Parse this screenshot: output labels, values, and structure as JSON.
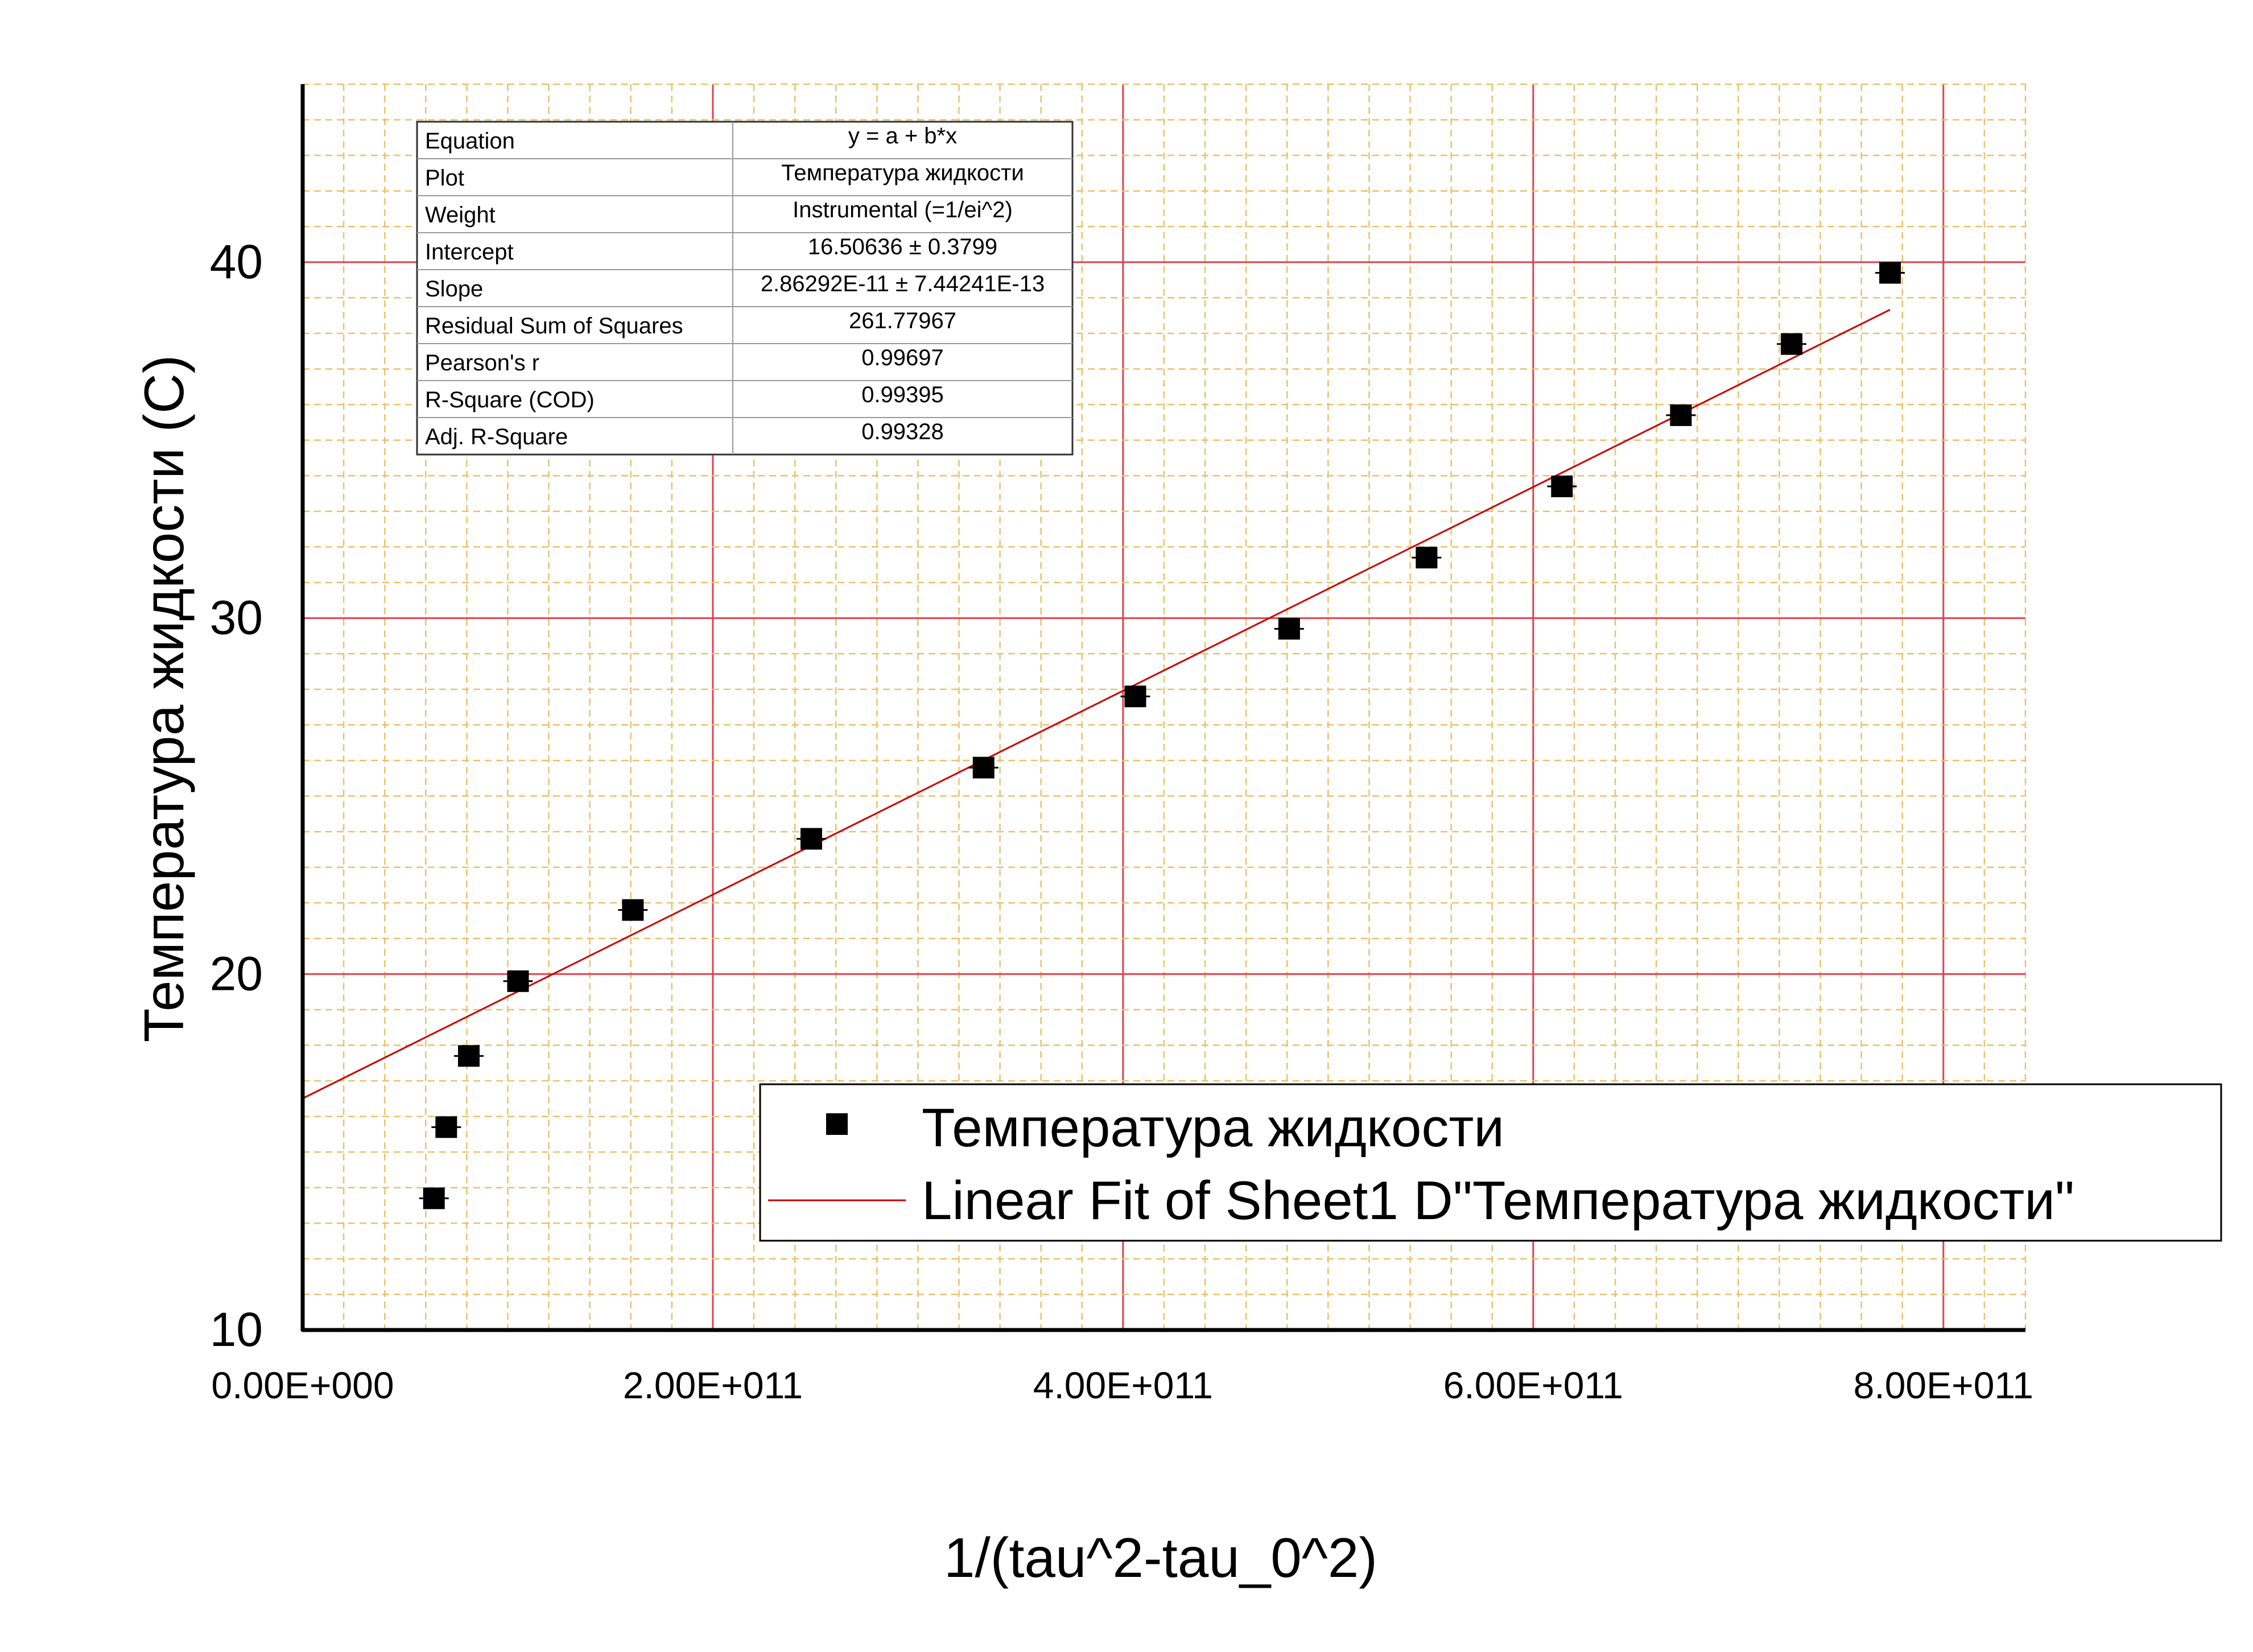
{
  "chart_data": {
    "type": "scatter",
    "xlabel": "1/(tau^2-tau_0^2)",
    "ylabel": "Температура жидкости (C)",
    "xlim": [
      0,
      840000000000.0
    ],
    "ylim": [
      10,
      45
    ],
    "x_ticks": [
      {
        "value": 0,
        "label": "0.00E+000"
      },
      {
        "value": 200000000000.0,
        "label": "2.00E+011"
      },
      {
        "value": 400000000000.0,
        "label": "4.00E+011"
      },
      {
        "value": 600000000000.0,
        "label": "6.00E+011"
      },
      {
        "value": 800000000000.0,
        "label": "8.00E+011"
      }
    ],
    "y_ticks": [
      {
        "value": 10,
        "label": "10"
      },
      {
        "value": 20,
        "label": "20"
      },
      {
        "value": 30,
        "label": "30"
      },
      {
        "value": 40,
        "label": "40"
      }
    ],
    "grid": true,
    "series": [
      {
        "name": "Температура жидкости",
        "marker": "square",
        "color": "#000000",
        "x": [
          64000000000.0,
          70000000000.0,
          81000000000.0,
          105000000000.0,
          161000000000.0,
          248000000000.0,
          332000000000.0,
          406000000000.0,
          481000000000.0,
          548000000000.0,
          614000000000.0,
          672000000000.0,
          726000000000.0,
          774000000000.0
        ],
        "y": [
          13.7,
          15.7,
          17.7,
          19.8,
          21.8,
          23.8,
          25.8,
          27.8,
          29.7,
          31.7,
          33.7,
          35.7,
          37.7,
          39.7
        ]
      },
      {
        "name": "Linear Fit of Sheet1 D\"Температура жидкости\"",
        "type": "line",
        "color": "#cc0000",
        "intercept": 16.50636,
        "slope": 2.86292e-11,
        "x_range": [
          0,
          774000000000.0
        ]
      }
    ],
    "legend": {
      "position": "bottom-right",
      "entries": [
        "Температура жидкости",
        "Linear Fit of Sheet1 D\"Температура жидкости\""
      ]
    },
    "fit_table": {
      "rows": [
        [
          "Equation",
          "y = a + b*x"
        ],
        [
          "Plot",
          "Температура жидкости"
        ],
        [
          "Weight",
          "Instrumental (=1/ei^2)"
        ],
        [
          "Intercept",
          "16.50636 ± 0.3799"
        ],
        [
          "Slope",
          "2.86292E-11 ± 7.44241E-13"
        ],
        [
          "Residual Sum of Squares",
          "261.77967"
        ],
        [
          "Pearson's r",
          "0.99697"
        ],
        [
          "R-Square (COD)",
          "0.99395"
        ],
        [
          "Adj. R-Square",
          "0.99328"
        ]
      ]
    },
    "colors": {
      "major_grid": "#e0404f",
      "minor_grid": "#e8c26a",
      "axis": "#000000",
      "fit_line": "#cc0000",
      "marker": "#000000"
    }
  }
}
